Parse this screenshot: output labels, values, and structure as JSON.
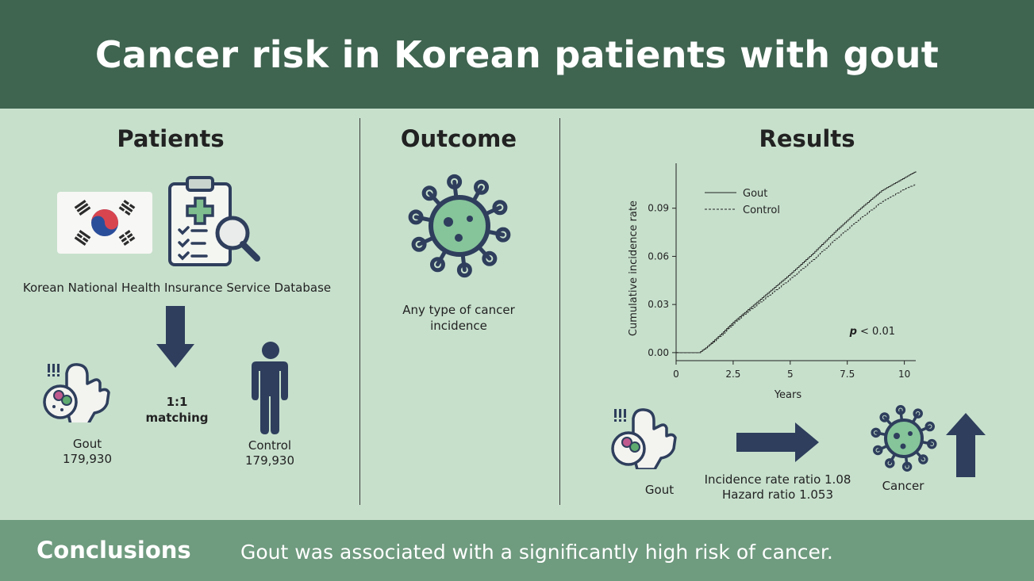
{
  "header": {
    "title": "Cancer risk in Korean patients with gout"
  },
  "patients": {
    "title": "Patients",
    "database": "Korean National Health Insurance Service Database",
    "matching": "1:1 matching",
    "gout_label": "Gout",
    "gout_n": "179,930",
    "control_label": "Control",
    "control_n": "179,930"
  },
  "outcome": {
    "title": "Outcome",
    "line1": "Any type of cancer",
    "line2": "incidence"
  },
  "results": {
    "title": "Results",
    "gout_label": "Gout",
    "cancer_label": "Cancer",
    "irr": "Incidence rate ratio 1.08",
    "hr": "Hazard ratio 1.053"
  },
  "footer": {
    "label": "Conclusions",
    "text": "Gout was associated with a significantly high risk of cancer."
  },
  "chart_data": {
    "type": "line",
    "xlabel": "Years",
    "ylabel": "Cumulative incidence rate",
    "xlim": [
      0,
      10.5
    ],
    "ylim": [
      -0.005,
      0.118
    ],
    "xticks": [
      "0",
      "2.5",
      "5",
      "7.5",
      "10"
    ],
    "yticks": [
      "0.00",
      "0.03",
      "0.06",
      "0.09"
    ],
    "xtick_values": [
      0,
      2.5,
      5,
      7.5,
      10
    ],
    "ytick_values": [
      0,
      0.03,
      0.06,
      0.09
    ],
    "annotation": "p < 0.01",
    "legend_position": "top-left",
    "series": [
      {
        "name": "Gout",
        "style": "solid",
        "x": [
          0,
          1.0,
          1.3,
          2,
          2.5,
          3,
          4,
          5,
          6,
          7,
          8,
          9,
          10,
          10.5
        ],
        "y": [
          0,
          0,
          0.003,
          0.012,
          0.019,
          0.025,
          0.037,
          0.049,
          0.062,
          0.076,
          0.089,
          0.101,
          0.109,
          0.113
        ]
      },
      {
        "name": "Control",
        "style": "dashed",
        "x": [
          0,
          1.0,
          1.3,
          2,
          2.5,
          3,
          4,
          5,
          6,
          7,
          8,
          9,
          10,
          10.5
        ],
        "y": [
          0,
          0,
          0.003,
          0.011,
          0.018,
          0.024,
          0.035,
          0.046,
          0.058,
          0.071,
          0.083,
          0.094,
          0.102,
          0.105
        ]
      }
    ]
  }
}
